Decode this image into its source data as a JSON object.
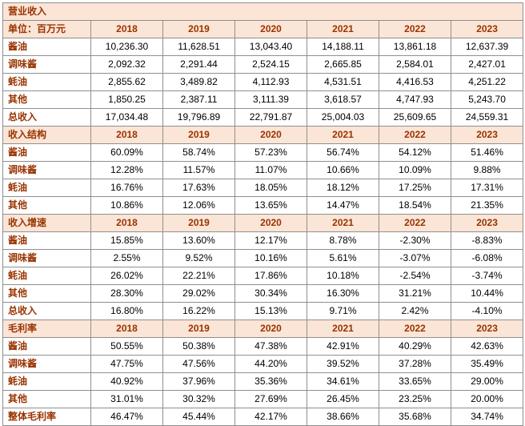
{
  "style": {
    "header_bg": "#fbe5d6",
    "header_text_color": "#993300",
    "label_text_color": "#993300",
    "value_text_color": "#000000",
    "grid_border_color": "#8f8f8f",
    "outer_border_color": "#4d4d4d"
  },
  "table": {
    "title": "营业收入",
    "years": [
      "2018",
      "2019",
      "2020",
      "2021",
      "2022",
      "2023"
    ],
    "sections": [
      {
        "header": "单位：百万元",
        "rows": [
          {
            "label": "酱油",
            "values": [
              "10,236.30",
              "11,628.51",
              "13,043.40",
              "14,188.11",
              "13,861.18",
              "12,637.39"
            ]
          },
          {
            "label": "调味酱",
            "values": [
              "2,092.32",
              "2,291.44",
              "2,524.15",
              "2,665.85",
              "2,584.01",
              "2,427.01"
            ]
          },
          {
            "label": "蚝油",
            "values": [
              "2,855.62",
              "3,489.82",
              "4,112.93",
              "4,531.51",
              "4,416.53",
              "4,251.22"
            ]
          },
          {
            "label": "其他",
            "values": [
              "1,850.25",
              "2,387.11",
              "3,111.39",
              "3,618.57",
              "4,747.93",
              "5,243.70"
            ]
          },
          {
            "label": "总收入",
            "values": [
              "17,034.48",
              "19,796.89",
              "22,791.87",
              "25,004.03",
              "25,609.65",
              "24,559.31"
            ]
          }
        ]
      },
      {
        "header": "收入结构",
        "rows": [
          {
            "label": "酱油",
            "values": [
              "60.09%",
              "58.74%",
              "57.23%",
              "56.74%",
              "54.12%",
              "51.46%"
            ]
          },
          {
            "label": "调味酱",
            "values": [
              "12.28%",
              "11.57%",
              "11.07%",
              "10.66%",
              "10.09%",
              "9.88%"
            ]
          },
          {
            "label": "蚝油",
            "values": [
              "16.76%",
              "17.63%",
              "18.05%",
              "18.12%",
              "17.25%",
              "17.31%"
            ]
          },
          {
            "label": "其他",
            "values": [
              "10.86%",
              "12.06%",
              "13.65%",
              "14.47%",
              "18.54%",
              "21.35%"
            ]
          }
        ]
      },
      {
        "header": "收入增速",
        "rows": [
          {
            "label": "酱油",
            "values": [
              "15.85%",
              "13.60%",
              "12.17%",
              "8.78%",
              "-2.30%",
              "-8.83%"
            ]
          },
          {
            "label": "调味酱",
            "values": [
              "2.55%",
              "9.52%",
              "10.16%",
              "5.61%",
              "-3.07%",
              "-6.08%"
            ]
          },
          {
            "label": "蚝油",
            "values": [
              "26.02%",
              "22.21%",
              "17.86%",
              "10.18%",
              "-2.54%",
              "-3.74%"
            ]
          },
          {
            "label": "其他",
            "values": [
              "28.30%",
              "29.02%",
              "30.34%",
              "16.30%",
              "31.21%",
              "10.44%"
            ]
          },
          {
            "label": "总收入",
            "values": [
              "16.80%",
              "16.22%",
              "15.13%",
              "9.71%",
              "2.42%",
              "-4.10%"
            ]
          }
        ]
      },
      {
        "header": "毛利率",
        "rows": [
          {
            "label": "酱油",
            "values": [
              "50.55%",
              "50.38%",
              "47.38%",
              "42.91%",
              "40.29%",
              "42.63%"
            ]
          },
          {
            "label": "调味酱",
            "values": [
              "47.75%",
              "47.56%",
              "44.20%",
              "39.52%",
              "37.28%",
              "35.49%"
            ]
          },
          {
            "label": "蚝油",
            "values": [
              "40.92%",
              "37.96%",
              "35.36%",
              "34.61%",
              "33.65%",
              "29.00%"
            ]
          },
          {
            "label": "其他",
            "values": [
              "31.01%",
              "30.32%",
              "27.69%",
              "26.45%",
              "23.25%",
              "20.00%"
            ]
          },
          {
            "label": "整体毛利率",
            "values": [
              "46.47%",
              "45.44%",
              "42.17%",
              "38.66%",
              "35.68%",
              "34.74%"
            ]
          }
        ]
      }
    ]
  }
}
